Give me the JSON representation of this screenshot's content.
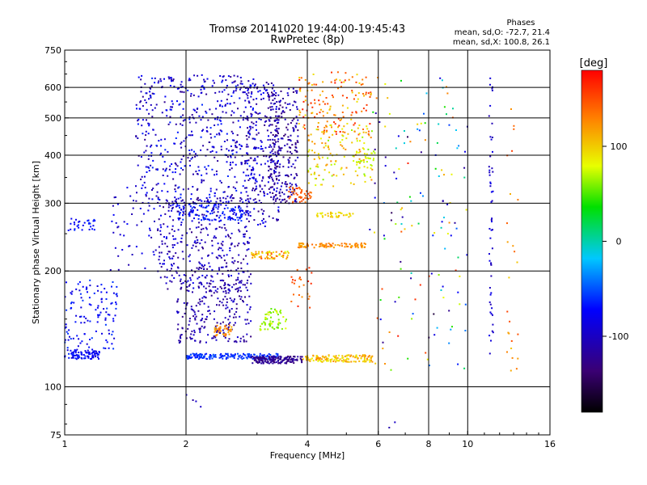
{
  "chart_data": {
    "type": "scatter",
    "title": "Tromsø 20141020 19:44:00-19:45:43",
    "subtitle": "RwPretec (8p)",
    "stats": {
      "heading": "Phases",
      "line1": "mean, sd,O: -72.7, 21.4",
      "line2": "mean, sd,X: 100.8, 26.1"
    },
    "xlabel": "Frequency [MHz]",
    "ylabel": "Stationary phase Virtual Height [km]",
    "x_scale": "log",
    "y_scale": "log",
    "xlim": [
      1,
      16
    ],
    "ylim": [
      75,
      750
    ],
    "x_ticks": [
      1,
      2,
      4,
      6,
      8,
      10,
      16
    ],
    "x_tick_labels": [
      "1",
      "2",
      "4",
      "6",
      "8",
      "10",
      "16"
    ],
    "y_ticks": [
      75,
      100,
      200,
      300,
      400,
      500,
      600,
      750
    ],
    "y_tick_labels": [
      "75",
      "100",
      "200",
      "300",
      "400",
      "500",
      "600",
      "750"
    ],
    "x_grid": [
      2,
      4,
      6,
      8,
      10
    ],
    "y_grid": [
      100,
      200,
      300,
      400,
      500,
      600
    ],
    "grid": true,
    "colorbar": {
      "label": "[deg]",
      "range": [
        -180,
        180
      ],
      "ticks": [
        -100,
        0,
        100
      ],
      "tick_labels": [
        "-100",
        "0",
        "100"
      ],
      "colormap": "rainbow"
    },
    "clusters": [
      {
        "f": [
          1.0,
          1.22
        ],
        "h": [
          118,
          125
        ],
        "phase": [
          -95,
          -60
        ],
        "n": 90
      },
      {
        "f": [
          1.0,
          1.35
        ],
        "h": [
          125,
          190
        ],
        "phase": [
          -95,
          -55
        ],
        "n": 120
      },
      {
        "f": [
          1.02,
          1.2
        ],
        "h": [
          255,
          275
        ],
        "phase": [
          -85,
          -60
        ],
        "n": 30
      },
      {
        "f": [
          1.3,
          1.9
        ],
        "h": [
          200,
          330
        ],
        "phase": [
          -110,
          -70
        ],
        "n": 60
      },
      {
        "f": [
          1.5,
          3.0
        ],
        "h": [
          300,
          650
        ],
        "phase": [
          -125,
          -60
        ],
        "n": 550
      },
      {
        "f": [
          1.7,
          2.9
        ],
        "h": [
          175,
          310
        ],
        "phase": [
          -130,
          -80
        ],
        "n": 380
      },
      {
        "f": [
          1.9,
          2.9
        ],
        "h": [
          130,
          190
        ],
        "phase": [
          -130,
          -90
        ],
        "n": 220
      },
      {
        "f": [
          1.9,
          2.8
        ],
        "h": [
          270,
          300
        ],
        "phase": [
          -80,
          -55
        ],
        "n": 110
      },
      {
        "f": [
          2.0,
          3.4
        ],
        "h": [
          118,
          122
        ],
        "phase": [
          -70,
          -50
        ],
        "n": 170
      },
      {
        "f": [
          2.35,
          2.6
        ],
        "h": [
          135,
          145
        ],
        "phase": [
          110,
          140
        ],
        "n": 40
      },
      {
        "f": [
          2.8,
          3.4
        ],
        "h": [
          260,
          620
        ],
        "phase": [
          -130,
          -70
        ],
        "n": 220
      },
      {
        "f": [
          3.2,
          3.8
        ],
        "h": [
          300,
          600
        ],
        "phase": [
          -140,
          -90
        ],
        "n": 260
      },
      {
        "f": [
          3.05,
          3.55
        ],
        "h": [
          140,
          160
        ],
        "phase": [
          50,
          85
        ],
        "n": 60
      },
      {
        "f": [
          2.9,
          3.6
        ],
        "h": [
          215,
          225
        ],
        "phase": [
          70,
          150
        ],
        "n": 60
      },
      {
        "f": [
          2.9,
          3.9
        ],
        "h": [
          115,
          120
        ],
        "phase": [
          -140,
          -110
        ],
        "n": 170
      },
      {
        "f": [
          3.9,
          5.8
        ],
        "h": [
          116,
          121
        ],
        "phase": [
          80,
          130
        ],
        "n": 140
      },
      {
        "f": [
          3.6,
          4.1
        ],
        "h": [
          300,
          330
        ],
        "phase": [
          130,
          160
        ],
        "n": 45
      },
      {
        "f": [
          3.8,
          5.6
        ],
        "h": [
          230,
          236
        ],
        "phase": [
          110,
          140
        ],
        "n": 90
      },
      {
        "f": [
          4.2,
          5.2
        ],
        "h": [
          276,
          284
        ],
        "phase": [
          85,
          110
        ],
        "n": 40
      },
      {
        "f": [
          4.0,
          5.8
        ],
        "h": [
          330,
          480
        ],
        "phase": [
          60,
          130
        ],
        "n": 130
      },
      {
        "f": [
          3.8,
          5.8
        ],
        "h": [
          450,
          660
        ],
        "phase": [
          90,
          170
        ],
        "n": 150
      },
      {
        "f": [
          5.3,
          5.9
        ],
        "h": [
          370,
          410
        ],
        "phase": [
          60,
          90
        ],
        "n": 30
      },
      {
        "f": [
          3.6,
          4.1
        ],
        "h": [
          160,
          205
        ],
        "phase": [
          120,
          170
        ],
        "n": 25
      },
      {
        "f": [
          5.7,
          8.5
        ],
        "h": [
          110,
          650
        ],
        "phase": [
          -160,
          170
        ],
        "n": 90
      },
      {
        "f": [
          8.4,
          10.0
        ],
        "h": [
          110,
          650
        ],
        "phase": [
          -130,
          170
        ],
        "n": 55
      },
      {
        "f": [
          11.3,
          11.6
        ],
        "h": [
          120,
          640
        ],
        "phase": [
          -110,
          -80
        ],
        "n": 55
      },
      {
        "f": [
          12.5,
          13.4
        ],
        "h": [
          110,
          560
        ],
        "phase": [
          100,
          160
        ],
        "n": 25
      },
      {
        "f": [
          1.9,
          2.2
        ],
        "h": [
          88,
          96
        ],
        "phase": [
          -130,
          -90
        ],
        "n": 4
      },
      {
        "f": [
          6.3,
          6.7
        ],
        "h": [
          76,
          82
        ],
        "phase": [
          -110,
          -90
        ],
        "n": 2
      }
    ]
  }
}
